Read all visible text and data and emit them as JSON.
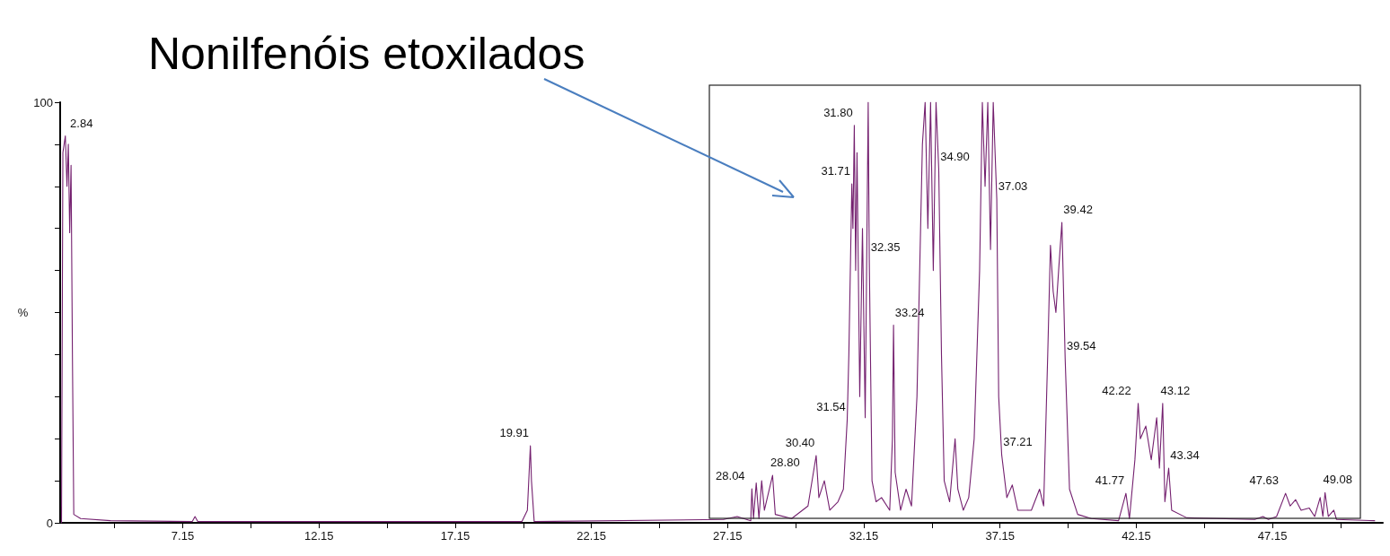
{
  "chart_data": {
    "type": "line",
    "title": "Nonilfenóis etoxilados",
    "ylabel": "%",
    "color": "#74206f",
    "marker": "none",
    "grid": false,
    "x": [
      2.7,
      2.75,
      2.84,
      2.9,
      2.95,
      3.0,
      3.05,
      3.1,
      3.15,
      3.4,
      4.5,
      7.5,
      7.6,
      7.7,
      19.6,
      19.8,
      19.91,
      19.95,
      20.05,
      27.0,
      27.5,
      28.0,
      28.04,
      28.1,
      28.2,
      28.3,
      28.4,
      28.5,
      28.8,
      28.9,
      29.5,
      30.1,
      30.4,
      30.5,
      30.7,
      30.9,
      31.2,
      31.4,
      31.54,
      31.6,
      31.71,
      31.75,
      31.8,
      31.85,
      31.9,
      32.0,
      32.1,
      32.2,
      32.31,
      32.35,
      32.45,
      32.6,
      32.8,
      33.1,
      33.2,
      33.24,
      33.3,
      33.5,
      33.7,
      33.9,
      34.1,
      34.3,
      34.4,
      34.5,
      34.6,
      34.7,
      34.8,
      34.9,
      35.0,
      35.1,
      35.3,
      35.5,
      35.6,
      35.8,
      36.0,
      36.2,
      36.4,
      36.5,
      36.6,
      36.7,
      36.8,
      36.9,
      37.03,
      37.1,
      37.21,
      37.4,
      37.6,
      37.8,
      38.3,
      38.6,
      38.75,
      38.9,
      39.0,
      39.1,
      39.2,
      39.3,
      39.42,
      39.54,
      39.7,
      40.0,
      40.5,
      41.5,
      41.77,
      41.9,
      42.1,
      42.22,
      42.3,
      42.5,
      42.7,
      42.9,
      43.0,
      43.12,
      43.2,
      43.34,
      43.45,
      44.0,
      46.5,
      46.8,
      47.0,
      47.3,
      47.63,
      47.8,
      48.0,
      48.2,
      48.5,
      48.7,
      48.9,
      49.0,
      49.08,
      49.2,
      49.4,
      49.5,
      50.9
    ],
    "values": [
      0,
      88,
      92,
      80,
      90,
      69,
      85,
      40,
      2,
      1,
      0.5,
      0.3,
      1.5,
      0.3,
      0.3,
      3,
      18.3,
      10,
      0.3,
      0.8,
      1.5,
      0.5,
      8.1,
      1,
      9.5,
      1,
      10,
      3,
      11.3,
      2,
      1,
      4,
      16,
      6,
      10,
      3,
      5,
      8,
      24.5,
      40,
      80.6,
      70,
      94.5,
      60,
      88,
      30,
      70,
      25,
      100,
      62.5,
      10,
      5,
      6,
      3,
      20,
      47,
      12,
      3,
      8,
      4,
      30,
      90,
      100,
      70,
      100,
      60,
      100,
      84,
      40,
      10,
      5,
      20,
      8,
      3,
      6,
      20,
      60,
      100,
      80,
      100,
      65,
      100,
      77,
      30,
      16.2,
      6,
      9,
      3,
      3,
      8,
      4,
      40,
      66,
      55,
      50,
      60,
      71.4,
      39,
      8,
      2,
      1,
      0.5,
      7,
      1,
      15,
      28.4,
      20,
      23,
      15,
      25,
      13,
      28.4,
      5,
      13,
      3,
      1.2,
      0.8,
      1.5,
      0.8,
      1.5,
      7,
      4,
      5.5,
      3,
      3.5,
      1.5,
      6,
      1.5,
      7.2,
      1.5,
      3,
      0.8,
      0.5
    ],
    "xlim": [
      2.65,
      51.2
    ],
    "xticks": [
      {
        "value": 4.65,
        "label": null
      },
      7.15,
      {
        "value": 9.65,
        "label": null
      },
      12.15,
      {
        "value": 14.65,
        "label": null
      },
      17.15,
      {
        "value": 19.65,
        "label": null
      },
      22.15,
      {
        "value": 24.65,
        "label": null
      },
      27.15,
      {
        "value": 29.65,
        "label": null
      },
      32.15,
      {
        "value": 34.65,
        "label": null
      },
      37.15,
      {
        "value": 39.65,
        "label": null
      },
      42.15,
      {
        "value": 44.65,
        "label": null
      },
      47.15,
      {
        "value": 49.65,
        "label": null
      }
    ],
    "ylim": [
      0,
      100
    ],
    "yticks": [
      0,
      {
        "value": 10,
        "label": null
      },
      {
        "value": 20,
        "label": null
      },
      {
        "value": 30,
        "label": null
      },
      {
        "value": 40,
        "label": null
      },
      {
        "value": 50,
        "label": null
      },
      {
        "value": 60,
        "label": null
      },
      {
        "value": 70,
        "label": null
      },
      {
        "value": 80,
        "label": null
      },
      {
        "value": 90,
        "label": null
      },
      100
    ],
    "annotations": [
      {
        "text": "2.84",
        "x": 2.84,
        "y": 92
      },
      {
        "text": "19.91",
        "x": 19.91,
        "y": 18.3
      },
      {
        "text": "28.04",
        "x": 28.04,
        "y": 8.1
      },
      {
        "text": "28.80",
        "x": 28.8,
        "y": 11.3
      },
      {
        "text": "30.40",
        "x": 30.4,
        "y": 16
      },
      {
        "text": "31.54",
        "x": 31.54,
        "y": 24.5
      },
      {
        "text": "31.71",
        "x": 31.71,
        "y": 80.6
      },
      {
        "text": "31.80",
        "x": 31.8,
        "y": 94.5
      },
      {
        "text": "32.35",
        "x": 32.35,
        "y": 62.5
      },
      {
        "text": "33.24",
        "x": 33.24,
        "y": 47
      },
      {
        "text": "34.90",
        "x": 34.9,
        "y": 84
      },
      {
        "text": "37.03",
        "x": 37.03,
        "y": 77
      },
      {
        "text": "37.21",
        "x": 37.21,
        "y": 16.2
      },
      {
        "text": "39.42",
        "x": 39.42,
        "y": 71.4
      },
      {
        "text": "39.54",
        "x": 39.54,
        "y": 39
      },
      {
        "text": "41.77",
        "x": 41.77,
        "y": 7
      },
      {
        "text": "42.22",
        "x": 42.22,
        "y": 28.4
      },
      {
        "text": "43.12",
        "x": 43.12,
        "y": 28.4
      },
      {
        "text": "43.34",
        "x": 43.34,
        "y": 13
      },
      {
        "text": "47.63",
        "x": 47.63,
        "y": 7
      },
      {
        "text": "49.08",
        "x": 49.08,
        "y": 7.2
      }
    ]
  }
}
